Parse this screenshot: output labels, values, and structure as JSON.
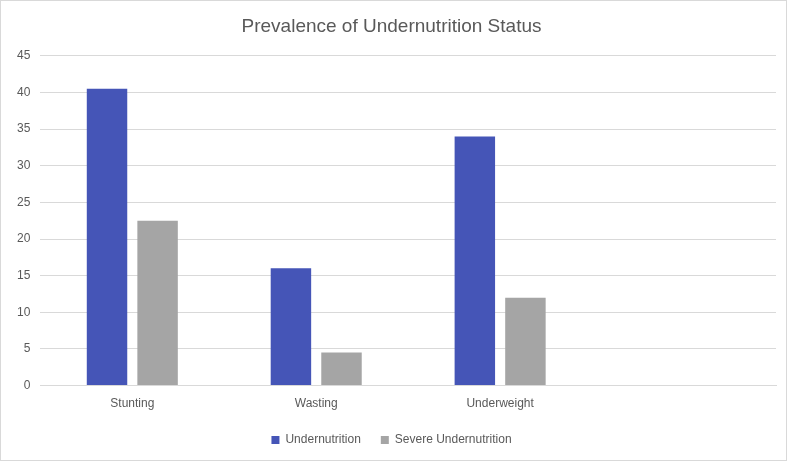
{
  "chart_data": {
    "type": "bar",
    "title": "Prevalence of Undernutrition Status",
    "categories": [
      "Stunting",
      "Wasting",
      "Underweight",
      null
    ],
    "series": [
      {
        "name": "Undernutrition",
        "color": "#4555b7",
        "values": [
          40.5,
          16,
          34,
          null
        ]
      },
      {
        "name": "Severe Undernutrition",
        "color": "#a5a5a5",
        "values": [
          22.5,
          4.5,
          12,
          null
        ]
      }
    ],
    "ylim": [
      0,
      45
    ],
    "yticks": [
      0,
      5,
      10,
      15,
      20,
      25,
      30,
      35,
      40,
      45
    ],
    "grid": true,
    "legend": "bottom"
  }
}
